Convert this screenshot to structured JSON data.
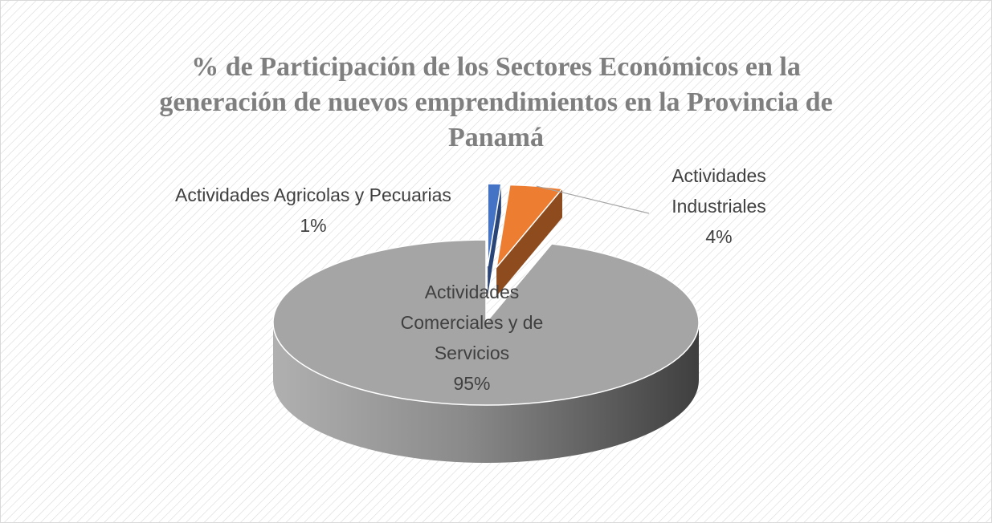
{
  "chart_data": {
    "type": "pie",
    "title": "% de Participación de los Sectores Económicos en la generación de nuevos emprendimientos en la Provincia de Panamá",
    "categories": [
      "Actividades Agricolas y Pecuarias",
      "Actividades Industriales",
      "Actividades Comerciales y de Servicios"
    ],
    "values": [
      1,
      4,
      95
    ],
    "value_labels": [
      "1%",
      "4%",
      "95%"
    ],
    "colors": [
      "#4472c4",
      "#ed7d31",
      "#a5a5a5"
    ]
  }
}
